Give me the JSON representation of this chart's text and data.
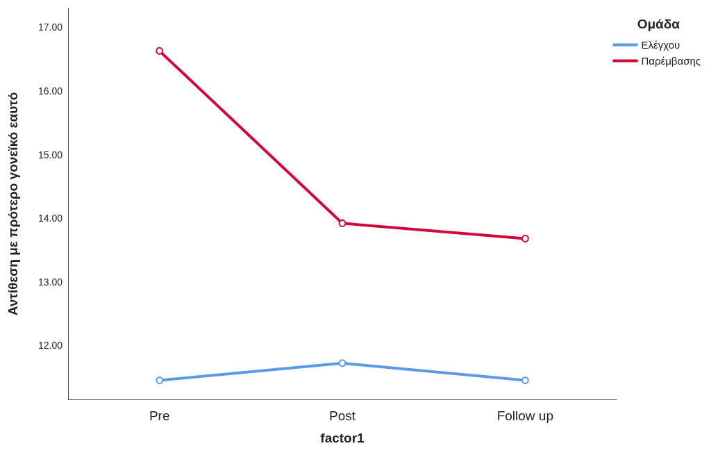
{
  "chart_data": {
    "type": "line",
    "xlabel": "factor1",
    "ylabel": "Αντίθεση με πρότερο γονεϊκό εαυτό",
    "legend_title": "Ομάδα",
    "categories": [
      "Pre",
      "Post",
      "Follow up"
    ],
    "series": [
      {
        "name": "Ελέγχου",
        "color": "#5b9be6",
        "values": [
          11.45,
          11.72,
          11.45
        ]
      },
      {
        "name": "Παρέμβασης",
        "color": "#d3083a",
        "values": [
          16.63,
          13.92,
          13.68
        ]
      }
    ],
    "ylim": [
      11.15,
      17.3
    ],
    "yticks": [
      {
        "value": 12,
        "label": "12.00"
      },
      {
        "value": 13,
        "label": "13.00"
      },
      {
        "value": 14,
        "label": "14.00"
      },
      {
        "value": 15,
        "label": "15.00"
      },
      {
        "value": 16,
        "label": "16.00"
      },
      {
        "value": 17,
        "label": "17.00"
      }
    ],
    "grid": false,
    "legend": "top right",
    "marker": "circle"
  }
}
